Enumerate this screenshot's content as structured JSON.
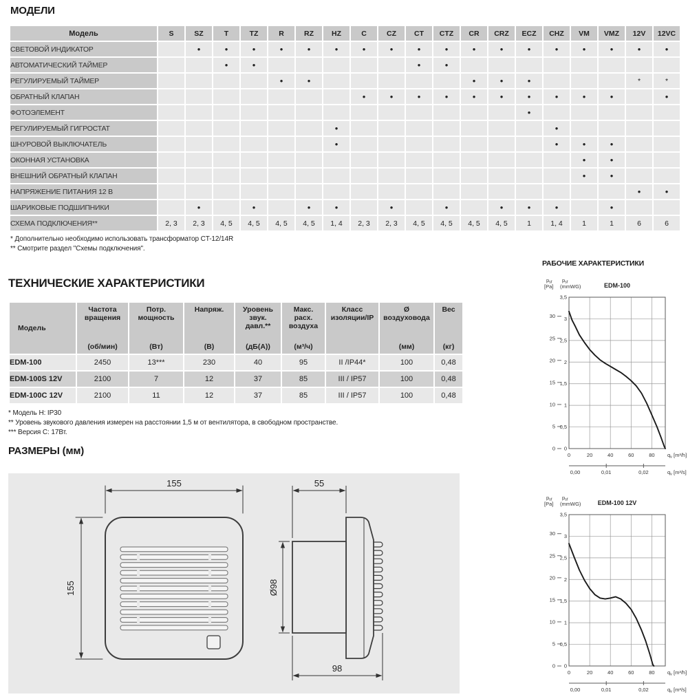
{
  "models": {
    "heading": "МОДЕЛИ",
    "corner_label": "Модель",
    "columns": [
      "S",
      "SZ",
      "T",
      "TZ",
      "R",
      "RZ",
      "HZ",
      "C",
      "CZ",
      "CT",
      "CTZ",
      "CR",
      "CRZ",
      "ECZ",
      "CHZ",
      "VM",
      "VMZ",
      "12V",
      "12VC"
    ],
    "rows": [
      {
        "label": "СВЕТОВОЙ ИНДИКАТОР",
        "cells": [
          "",
          "•",
          "•",
          "•",
          "•",
          "•",
          "•",
          "•",
          "•",
          "•",
          "•",
          "•",
          "•",
          "•",
          "•",
          "•",
          "•",
          "•",
          "•"
        ]
      },
      {
        "label": "АВТОМАТИЧЕСКИЙ ТАЙМЕР",
        "cells": [
          "",
          "",
          "•",
          "•",
          "",
          "",
          "",
          "",
          "",
          "•",
          "•",
          "",
          "",
          "",
          "",
          "",
          "",
          "",
          ""
        ]
      },
      {
        "label": "РЕГУЛИРУЕМЫЙ ТАЙМЕР",
        "cells": [
          "",
          "",
          "",
          "",
          "•",
          "•",
          "",
          "",
          "",
          "",
          "",
          "•",
          "•",
          "•",
          "",
          "",
          "",
          "*",
          "*"
        ]
      },
      {
        "label": "ОБРАТНЫЙ КЛАПАН",
        "cells": [
          "",
          "",
          "",
          "",
          "",
          "",
          "",
          "•",
          "•",
          "•",
          "•",
          "•",
          "•",
          "•",
          "•",
          "•",
          "•",
          "",
          "•"
        ]
      },
      {
        "label": "ФОТОЭЛЕМЕНТ",
        "cells": [
          "",
          "",
          "",
          "",
          "",
          "",
          "",
          "",
          "",
          "",
          "",
          "",
          "",
          "•",
          "",
          "",
          "",
          "",
          ""
        ]
      },
      {
        "label": "РЕГУЛИРУЕМЫЙ ГИГРОСТАТ",
        "cells": [
          "",
          "",
          "",
          "",
          "",
          "",
          "•",
          "",
          "",
          "",
          "",
          "",
          "",
          "",
          "•",
          "",
          "",
          "",
          ""
        ]
      },
      {
        "label": "ШНУРОВОЙ ВЫКЛЮЧАТЕЛЬ",
        "cells": [
          "",
          "",
          "",
          "",
          "",
          "",
          "•",
          "",
          "",
          "",
          "",
          "",
          "",
          "",
          "•",
          "•",
          "•",
          "",
          ""
        ]
      },
      {
        "label": "ОКОННАЯ УСТАНОВКА",
        "cells": [
          "",
          "",
          "",
          "",
          "",
          "",
          "",
          "",
          "",
          "",
          "",
          "",
          "",
          "",
          "",
          "•",
          "•",
          "",
          ""
        ]
      },
      {
        "label": "ВНЕШНИЙ ОБРАТНЫЙ КЛАПАН",
        "cells": [
          "",
          "",
          "",
          "",
          "",
          "",
          "",
          "",
          "",
          "",
          "",
          "",
          "",
          "",
          "",
          "•",
          "•",
          "",
          ""
        ]
      },
      {
        "label": "НАПРЯЖЕНИЕ ПИТАНИЯ 12 В",
        "cells": [
          "",
          "",
          "",
          "",
          "",
          "",
          "",
          "",
          "",
          "",
          "",
          "",
          "",
          "",
          "",
          "",
          "",
          "•",
          "•"
        ]
      },
      {
        "label": "ШАРИКОВЫЕ ПОДШИПНИКИ",
        "cells": [
          "",
          "•",
          "",
          "•",
          "",
          "•",
          "•",
          "",
          "•",
          "",
          "•",
          "",
          "•",
          "•",
          "•",
          "",
          "•",
          "",
          ""
        ]
      },
      {
        "label": "СХЕМА ПОДКЛЮЧЕНИЯ**",
        "cells": [
          "2, 3",
          "2, 3",
          "4, 5",
          "4, 5",
          "4, 5",
          "4, 5",
          "1, 4",
          "2, 3",
          "2, 3",
          "4, 5",
          "4, 5",
          "4, 5",
          "4, 5",
          "1",
          "1, 4",
          "1",
          "1",
          "6",
          "6"
        ]
      }
    ],
    "footnotes": [
      "* Дополнительно необходимо использовать трансформатор CT-12/14R",
      "** Смотрите раздел \"Схемы подключения\"."
    ]
  },
  "tech": {
    "heading": "ТЕХНИЧЕСКИЕ ХАРАКТЕРИСТИКИ",
    "headers": [
      {
        "lines": [
          "Модель"
        ],
        "unit": ""
      },
      {
        "lines": [
          "Частота",
          "вращения"
        ],
        "unit": "(об/мин)"
      },
      {
        "lines": [
          "Потр.",
          "мощность"
        ],
        "unit": "(Вт)"
      },
      {
        "lines": [
          "Напряж."
        ],
        "unit": "(В)"
      },
      {
        "lines": [
          "Уровень",
          "звук.",
          "давл.**"
        ],
        "unit": "(дБ(А))"
      },
      {
        "lines": [
          "Макс.",
          "расх.",
          "воздуха"
        ],
        "unit": "(м³/ч)"
      },
      {
        "lines": [
          "Класс",
          "изоляции/IP"
        ],
        "unit": ""
      },
      {
        "lines": [
          "Ø",
          "воздуховода"
        ],
        "unit": "(мм)"
      },
      {
        "lines": [
          "Вес"
        ],
        "unit": "(кг)"
      }
    ],
    "rows": [
      [
        "EDM-100",
        "2450",
        "13***",
        "230",
        "40",
        "95",
        "II /IP44*",
        "100",
        "0,48"
      ],
      [
        "EDM-100S 12V",
        "2100",
        "7",
        "12",
        "37",
        "85",
        "III / IP57",
        "100",
        "0,48"
      ],
      [
        "EDM-100C 12V",
        "2100",
        "11",
        "12",
        "37",
        "85",
        "III / IP57",
        "100",
        "0,48"
      ]
    ],
    "footnotes": [
      "* Модель H: IP30",
      "** Уровень звукового давления измерен на расстоянии 1,5 м от вентилятора, в свободном пространстве.",
      "*** Версия C: 17Вт."
    ]
  },
  "dimensions": {
    "heading": "РАЗМЕРЫ (мм)",
    "front_width": "155",
    "front_height": "155",
    "side_depth": "55",
    "duct_diameter": "Ø98",
    "total_depth": "98"
  },
  "performance": {
    "heading": "РАБОЧИЕ ХАРАКТЕРИСТИКИ"
  },
  "chart_data": [
    {
      "type": "line",
      "title": "EDM-100",
      "y_axis_left": {
        "symbol": "p",
        "sub": "sf",
        "unit": "[Pa]"
      },
      "y_axis_right": {
        "symbol": "p",
        "sub": "sf",
        "unit": "(mmWG)"
      },
      "x_axis": {
        "symbol": "q",
        "sub": "v",
        "unit": "[m³/h]"
      },
      "x_axis_secondary": {
        "symbol": "q",
        "sub": "v",
        "unit": "[m³/s]"
      },
      "xlim": [
        0,
        93
      ],
      "ylim_mmwg": [
        0,
        3.5
      ],
      "x_ticks": [
        0,
        20,
        40,
        60,
        80
      ],
      "x_ticks_secondary": [
        {
          "value": 0,
          "label": "0,00"
        },
        {
          "value": 0.01,
          "label": "0,01"
        },
        {
          "value": 0.02,
          "label": "0,02"
        }
      ],
      "y_ticks_mmwg": [
        {
          "v": 3.5,
          "label": "3,5"
        },
        {
          "v": 3,
          "label": "3"
        },
        {
          "v": 2.5,
          "label": "2,5"
        },
        {
          "v": 2,
          "label": "2"
        },
        {
          "v": 1.5,
          "label": "1,5"
        },
        {
          "v": 1,
          "label": "1"
        },
        {
          "v": 0.5,
          "label": "0,5"
        },
        {
          "v": 0,
          "label": "0"
        }
      ],
      "y_ticks_pa": [
        30,
        25,
        20,
        15,
        10,
        5,
        0
      ],
      "grid": true,
      "curve": {
        "x": [
          0,
          3,
          6,
          10,
          15,
          20,
          25,
          30,
          35,
          40,
          45,
          50,
          55,
          60,
          65,
          70,
          75,
          80,
          85,
          89,
          92,
          93
        ],
        "y_mmwg": [
          3.17,
          2.97,
          2.83,
          2.63,
          2.45,
          2.29,
          2.16,
          2.05,
          1.97,
          1.9,
          1.83,
          1.76,
          1.67,
          1.57,
          1.45,
          1.28,
          1.05,
          0.78,
          0.5,
          0.25,
          0.05,
          0
        ]
      }
    },
    {
      "type": "line",
      "title": "EDM-100 12V",
      "y_axis_left": {
        "symbol": "p",
        "sub": "sf",
        "unit": "[Pa]"
      },
      "y_axis_right": {
        "symbol": "p",
        "sub": "sf",
        "unit": "(mmWG)"
      },
      "x_axis": {
        "symbol": "q",
        "sub": "v",
        "unit": "[m³/h]"
      },
      "x_axis_secondary": {
        "symbol": "q",
        "sub": "v",
        "unit": "[m³/s]"
      },
      "xlim": [
        0,
        93
      ],
      "ylim_mmwg": [
        0,
        3.5
      ],
      "x_ticks": [
        0,
        20,
        40,
        60,
        80
      ],
      "x_ticks_secondary": [
        {
          "value": 0,
          "label": "0,00"
        },
        {
          "value": 0.01,
          "label": "0,01"
        },
        {
          "value": 0.02,
          "label": "0,02"
        }
      ],
      "y_ticks_mmwg": [
        {
          "v": 3.5,
          "label": "3,5"
        },
        {
          "v": 3,
          "label": "3"
        },
        {
          "v": 2.5,
          "label": "2,5"
        },
        {
          "v": 2,
          "label": "2"
        },
        {
          "v": 1.5,
          "label": "1,5"
        },
        {
          "v": 1,
          "label": "1"
        },
        {
          "v": 0.5,
          "label": "0,5"
        },
        {
          "v": 0,
          "label": "0"
        }
      ],
      "y_ticks_pa": [
        30,
        25,
        20,
        15,
        10,
        5,
        0
      ],
      "grid": true,
      "curve": {
        "x": [
          0,
          5,
          10,
          15,
          20,
          25,
          30,
          35,
          40,
          45,
          50,
          55,
          60,
          65,
          70,
          74,
          78,
          81,
          82
        ],
        "y_mmwg": [
          2.83,
          2.52,
          2.22,
          1.98,
          1.79,
          1.65,
          1.57,
          1.55,
          1.57,
          1.6,
          1.55,
          1.45,
          1.31,
          1.1,
          0.83,
          0.58,
          0.28,
          0.03,
          0
        ]
      }
    }
  ],
  "colors": {
    "header_cell": "#c9c9c9",
    "data_cell": "#e8e8e8",
    "stripe_dark": "#d0d0d0",
    "panel_bg": "#e9e9e9",
    "curve": "#1a1a1a",
    "grid": "#9a9a9a"
  }
}
